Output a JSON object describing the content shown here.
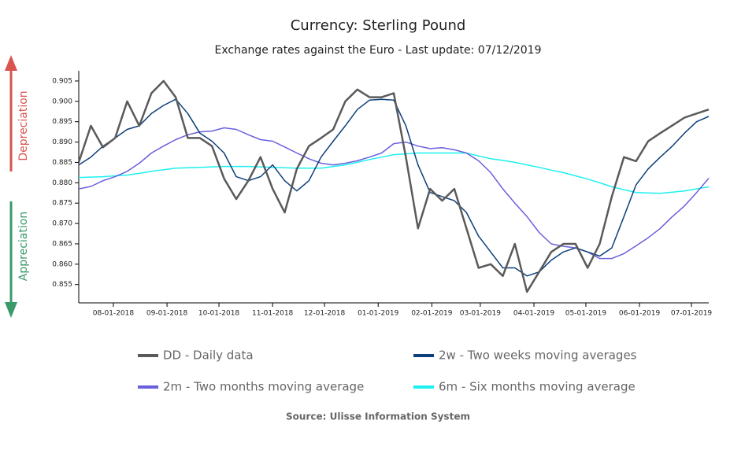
{
  "chart_data": {
    "type": "line",
    "title": "Currency: Sterling Pound",
    "subtitle": "Exchange rates against the Euro - Last update: 07/12/2019",
    "annotations": [
      "Depreciation",
      "Appreciation"
    ],
    "source": "Source: Ulisse Information System",
    "x": [
      "2018-07-12",
      "2018-07-19",
      "2018-07-26",
      "2018-08-02",
      "2018-08-09",
      "2018-08-16",
      "2018-08-23",
      "2018-08-30",
      "2018-09-06",
      "2018-09-13",
      "2018-09-20",
      "2018-09-27",
      "2018-10-04",
      "2018-10-11",
      "2018-10-18",
      "2018-10-25",
      "2018-11-01",
      "2018-11-08",
      "2018-11-15",
      "2018-11-22",
      "2018-11-29",
      "2018-12-06",
      "2018-12-13",
      "2018-12-20",
      "2018-12-27",
      "2019-01-03",
      "2019-01-10",
      "2019-01-17",
      "2019-01-24",
      "2019-01-31",
      "2019-02-07",
      "2019-02-14",
      "2019-02-21",
      "2019-02-28",
      "2019-03-07",
      "2019-03-14",
      "2019-03-21",
      "2019-03-28",
      "2019-04-04",
      "2019-04-11",
      "2019-04-18",
      "2019-04-25",
      "2019-05-02",
      "2019-05-09",
      "2019-05-16",
      "2019-05-23",
      "2019-05-30",
      "2019-06-06",
      "2019-06-13",
      "2019-06-20",
      "2019-06-27",
      "2019-07-04",
      "2019-07-11"
    ],
    "xlim": [
      "2018-07-12",
      "2019-07-11"
    ],
    "xticks": [
      {
        "value": "2018-08-01",
        "label": "08-01-2018"
      },
      {
        "value": "2018-09-01",
        "label": "09-01-2018"
      },
      {
        "value": "2018-10-01",
        "label": "10-01-2018"
      },
      {
        "value": "2018-11-01",
        "label": "11-01-2018"
      },
      {
        "value": "2018-12-01",
        "label": "12-01-2018"
      },
      {
        "value": "2019-01-01",
        "label": "01-01-2019"
      },
      {
        "value": "2019-02-01",
        "label": "02-01-2019"
      },
      {
        "value": "2019-03-01",
        "label": "03-01-2019"
      },
      {
        "value": "2019-04-01",
        "label": "04-01-2019"
      },
      {
        "value": "2019-05-01",
        "label": "05-01-2019"
      },
      {
        "value": "2019-06-01",
        "label": "06-01-2019"
      },
      {
        "value": "2019-07-01",
        "label": "07-01-2019"
      }
    ],
    "ylim": [
      0.8505,
      0.9075
    ],
    "yticks": [
      0.855,
      {
        "value": 0.86,
        "label": "0.860"
      },
      0.865,
      {
        "value": 0.87,
        "label": "0.870"
      },
      0.875,
      {
        "value": 0.88,
        "label": "0.880"
      },
      0.885,
      {
        "value": 0.89,
        "label": "0.890"
      },
      0.895,
      {
        "value": 0.9,
        "label": "0.900"
      },
      0.905
    ],
    "series": [
      {
        "name": "DD - Daily data",
        "color": "#5a5a5a",
        "width": 2.5,
        "values": [
          0.885,
          0.894,
          0.8887,
          0.891,
          0.9,
          0.894,
          0.902,
          0.905,
          0.901,
          0.891,
          0.891,
          0.889,
          0.881,
          0.876,
          0.8805,
          0.8863,
          0.8785,
          0.8727,
          0.8834,
          0.889,
          0.891,
          0.8931,
          0.9,
          0.9029,
          0.901,
          0.901,
          0.902,
          0.8863,
          0.8688,
          0.8785,
          0.8756,
          0.8785,
          0.8688,
          0.8591,
          0.86,
          0.8571,
          0.865,
          0.8532,
          0.8581,
          0.863,
          0.865,
          0.865,
          0.8591,
          0.865,
          0.8766,
          0.8863,
          0.8853,
          0.8902,
          0.8922,
          0.8941,
          0.896,
          0.897,
          0.898
        ]
      },
      {
        "name": "2w - Two weeks moving averages",
        "color": "#0d3f7a",
        "width": 1.5,
        "values": [
          0.8844,
          0.8863,
          0.889,
          0.891,
          0.8931,
          0.894,
          0.897,
          0.899,
          0.9005,
          0.897,
          0.8922,
          0.8902,
          0.8873,
          0.8815,
          0.8805,
          0.8815,
          0.8844,
          0.8805,
          0.878,
          0.8805,
          0.8863,
          0.8902,
          0.894,
          0.898,
          0.9003,
          0.9005,
          0.9003,
          0.894,
          0.8844,
          0.8776,
          0.8766,
          0.8756,
          0.8727,
          0.8669,
          0.863,
          0.8591,
          0.8591,
          0.8571,
          0.8581,
          0.861,
          0.863,
          0.864,
          0.863,
          0.862,
          0.864,
          0.8717,
          0.8795,
          0.8834,
          0.8863,
          0.889,
          0.8922,
          0.895,
          0.8963
        ]
      },
      {
        "name": "2m - Two months moving average",
        "color": "#6a5fdc",
        "width": 1.5,
        "values": [
          0.8785,
          0.8791,
          0.8805,
          0.8815,
          0.8828,
          0.8848,
          0.8873,
          0.889,
          0.8906,
          0.8918,
          0.8925,
          0.8927,
          0.8935,
          0.8931,
          0.8918,
          0.8906,
          0.8902,
          0.8888,
          0.8873,
          0.8859,
          0.8848,
          0.8844,
          0.8848,
          0.8854,
          0.8863,
          0.8873,
          0.8896,
          0.89,
          0.889,
          0.8884,
          0.8886,
          0.8881,
          0.8873,
          0.8854,
          0.8825,
          0.8785,
          0.875,
          0.8717,
          0.8678,
          0.865,
          0.8644,
          0.864,
          0.863,
          0.8614,
          0.8614,
          0.8626,
          0.8645,
          0.8665,
          0.8688,
          0.8717,
          0.8743,
          0.8776,
          0.8811
        ]
      },
      {
        "name": "6m - Six months moving average",
        "color": "#1ef0f0",
        "width": 1.5,
        "values": [
          0.8813,
          0.8814,
          0.8815,
          0.8817,
          0.8819,
          0.8823,
          0.8828,
          0.8832,
          0.8836,
          0.8837,
          0.8838,
          0.8839,
          0.884,
          0.884,
          0.884,
          0.8839,
          0.8838,
          0.8837,
          0.8836,
          0.8836,
          0.8836,
          0.884,
          0.8844,
          0.885,
          0.8857,
          0.8863,
          0.8869,
          0.8871,
          0.8873,
          0.8873,
          0.8873,
          0.8873,
          0.8873,
          0.8866,
          0.8859,
          0.8855,
          0.885,
          0.8844,
          0.8838,
          0.8831,
          0.8825,
          0.8817,
          0.8809,
          0.88,
          0.879,
          0.8783,
          0.8776,
          0.8775,
          0.8774,
          0.8777,
          0.878,
          0.8785,
          0.879
        ]
      }
    ],
    "legend": "bottom",
    "grid": false
  }
}
